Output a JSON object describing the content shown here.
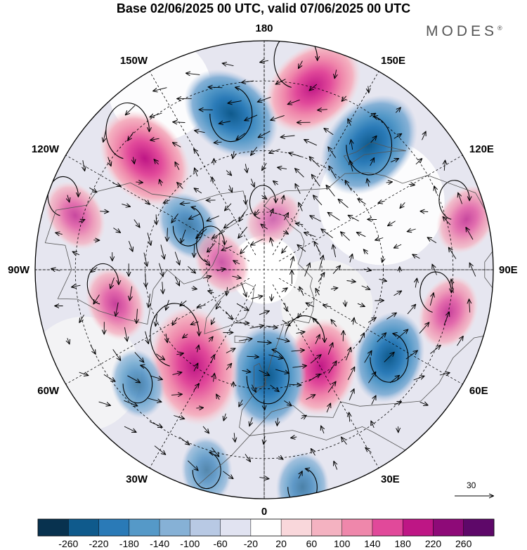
{
  "title": "Base 02/06/2025 00 UTC, valid 07/06/2025 00 UTC",
  "brand": "MODES",
  "brand_mark": "®",
  "longitude_labels": [
    "180",
    "150E",
    "120E",
    "90E",
    "60E",
    "30E",
    "0",
    "30W",
    "60W",
    "90W",
    "120W",
    "150W"
  ],
  "reference_vector": {
    "value": "30"
  },
  "colorbar": {
    "ticks": [
      "-260",
      "-220",
      "-180",
      "-140",
      "-100",
      "-60",
      "-20",
      "20",
      "60",
      "100",
      "140",
      "180",
      "220",
      "260"
    ],
    "colors": [
      "#08324f",
      "#0f5a8c",
      "#2a7ab7",
      "#5599c8",
      "#86b1d6",
      "#b8c9e4",
      "#e1e3f1",
      "#ffffff",
      "#f9d7db",
      "#f4b2c1",
      "#ef87ab",
      "#e1499a",
      "#be1685",
      "#8e0a78",
      "#5e0869"
    ]
  },
  "anomaly_centers": [
    {
      "lon": 165,
      "lat": 30,
      "value": 200,
      "name": "anomaly-high"
    },
    {
      "lon": -168,
      "lat": 38,
      "value": -190,
      "name": "anomaly-low"
    },
    {
      "lon": 140,
      "lat": 37,
      "value": -220,
      "name": "anomaly-low"
    },
    {
      "lon": -133,
      "lat": 37,
      "value": 200,
      "name": "anomaly-high"
    },
    {
      "lon": -106,
      "lat": 28,
      "value": 80,
      "name": "anomaly-high"
    },
    {
      "lon": 104,
      "lat": 25,
      "value": 80,
      "name": "anomaly-high"
    },
    {
      "lon": 77,
      "lat": 30,
      "value": 90,
      "name": "anomaly-high"
    },
    {
      "lon": 55,
      "lat": 40,
      "value": -150,
      "name": "anomaly-low"
    },
    {
      "lon": 30,
      "lat": 52,
      "value": 170,
      "name": "anomaly-high"
    },
    {
      "lon": 2,
      "lat": 54,
      "value": -190,
      "name": "anomaly-low"
    },
    {
      "lon": -36,
      "lat": 50,
      "value": 250,
      "name": "anomaly-high"
    },
    {
      "lon": -77,
      "lat": 40,
      "value": 90,
      "name": "anomaly-high"
    },
    {
      "lon": -120,
      "lat": 60,
      "value": -80,
      "name": "anomaly-low"
    },
    {
      "lon": -48,
      "lat": 35,
      "value": -70,
      "name": "anomaly-low"
    },
    {
      "lon": -16,
      "lat": 25,
      "value": -60,
      "name": "anomaly-low"
    },
    {
      "lon": 10,
      "lat": 22,
      "value": -70,
      "name": "anomaly-low"
    },
    {
      "lon": -100,
      "lat": 75,
      "value": 60,
      "name": "anomaly-high"
    },
    {
      "lon": 170,
      "lat": 72,
      "value": 40,
      "name": "anomaly-high"
    }
  ]
}
